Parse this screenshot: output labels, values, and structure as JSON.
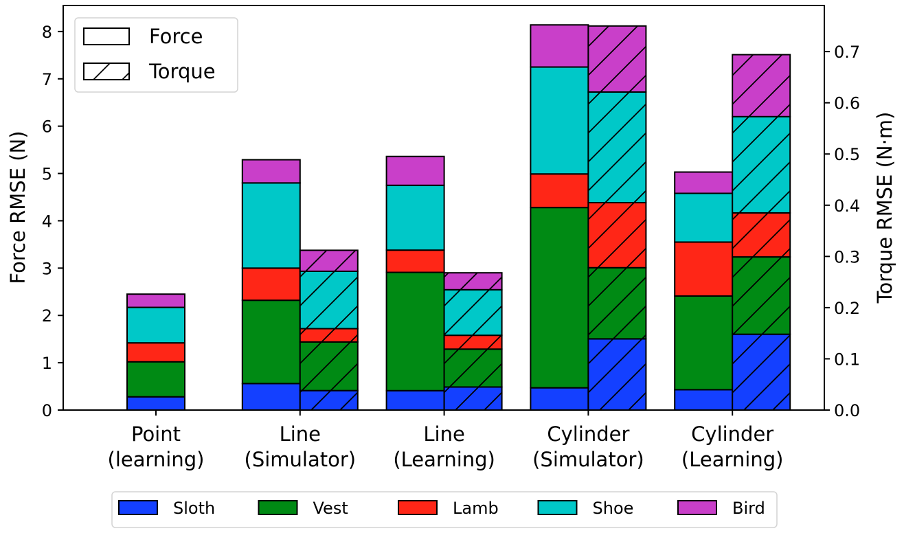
{
  "chart_data": {
    "type": "bar",
    "stacked": true,
    "categories": [
      "Point\n(learning)",
      "Line\n(Simulator)",
      "Line\n(Learning)",
      "Cylinder\n(Simulator)",
      "Cylinder\n(Learning)"
    ],
    "components": [
      "Sloth",
      "Vest",
      "Lamb",
      "Shoe",
      "Bird"
    ],
    "colors": {
      "Sloth": "#1440ff",
      "Vest": "#008a14",
      "Lamb": "#ff2617",
      "Shoe": "#00c8c8",
      "Bird": "#c93fc9"
    },
    "force": {
      "ylabel": "Force RMSE (N)",
      "ylim": [
        0,
        8.55
      ],
      "ticks": [
        0,
        1,
        2,
        3,
        4,
        5,
        6,
        7,
        8
      ],
      "hatch": "none",
      "series": [
        {
          "name": "Sloth",
          "values": [
            0.28,
            0.56,
            0.41,
            0.47,
            0.43
          ]
        },
        {
          "name": "Vest",
          "values": [
            0.74,
            1.76,
            2.5,
            3.81,
            1.98
          ]
        },
        {
          "name": "Lamb",
          "values": [
            0.4,
            0.68,
            0.47,
            0.71,
            1.14
          ]
        },
        {
          "name": "Shoe",
          "values": [
            0.75,
            1.8,
            1.37,
            2.26,
            1.03
          ]
        },
        {
          "name": "Bird",
          "values": [
            0.28,
            0.49,
            0.61,
            0.89,
            0.45
          ]
        }
      ]
    },
    "torque": {
      "ylabel": "Torque RMSE (N·m)",
      "ylim": [
        0,
        0.79
      ],
      "ticks": [
        0.0,
        0.1,
        0.2,
        0.3,
        0.4,
        0.5,
        0.6,
        0.7
      ],
      "hatch": "/",
      "series": [
        {
          "name": "Sloth",
          "values": [
            null,
            0.038,
            0.045,
            0.139,
            0.148
          ]
        },
        {
          "name": "Vest",
          "values": [
            null,
            0.095,
            0.074,
            0.139,
            0.151
          ]
        },
        {
          "name": "Lamb",
          "values": [
            null,
            0.026,
            0.027,
            0.127,
            0.086
          ]
        },
        {
          "name": "Shoe",
          "values": [
            null,
            0.112,
            0.089,
            0.216,
            0.188
          ]
        },
        {
          "name": "Bird",
          "values": [
            null,
            0.041,
            0.033,
            0.129,
            0.121
          ]
        }
      ]
    },
    "legend_top": {
      "position": "top-left",
      "entries": [
        "Force",
        "Torque"
      ]
    },
    "legend_bottom": {
      "position": "bottom-center",
      "entries": [
        "Sloth",
        "Vest",
        "Lamb",
        "Shoe",
        "Bird"
      ]
    },
    "grid": false
  }
}
